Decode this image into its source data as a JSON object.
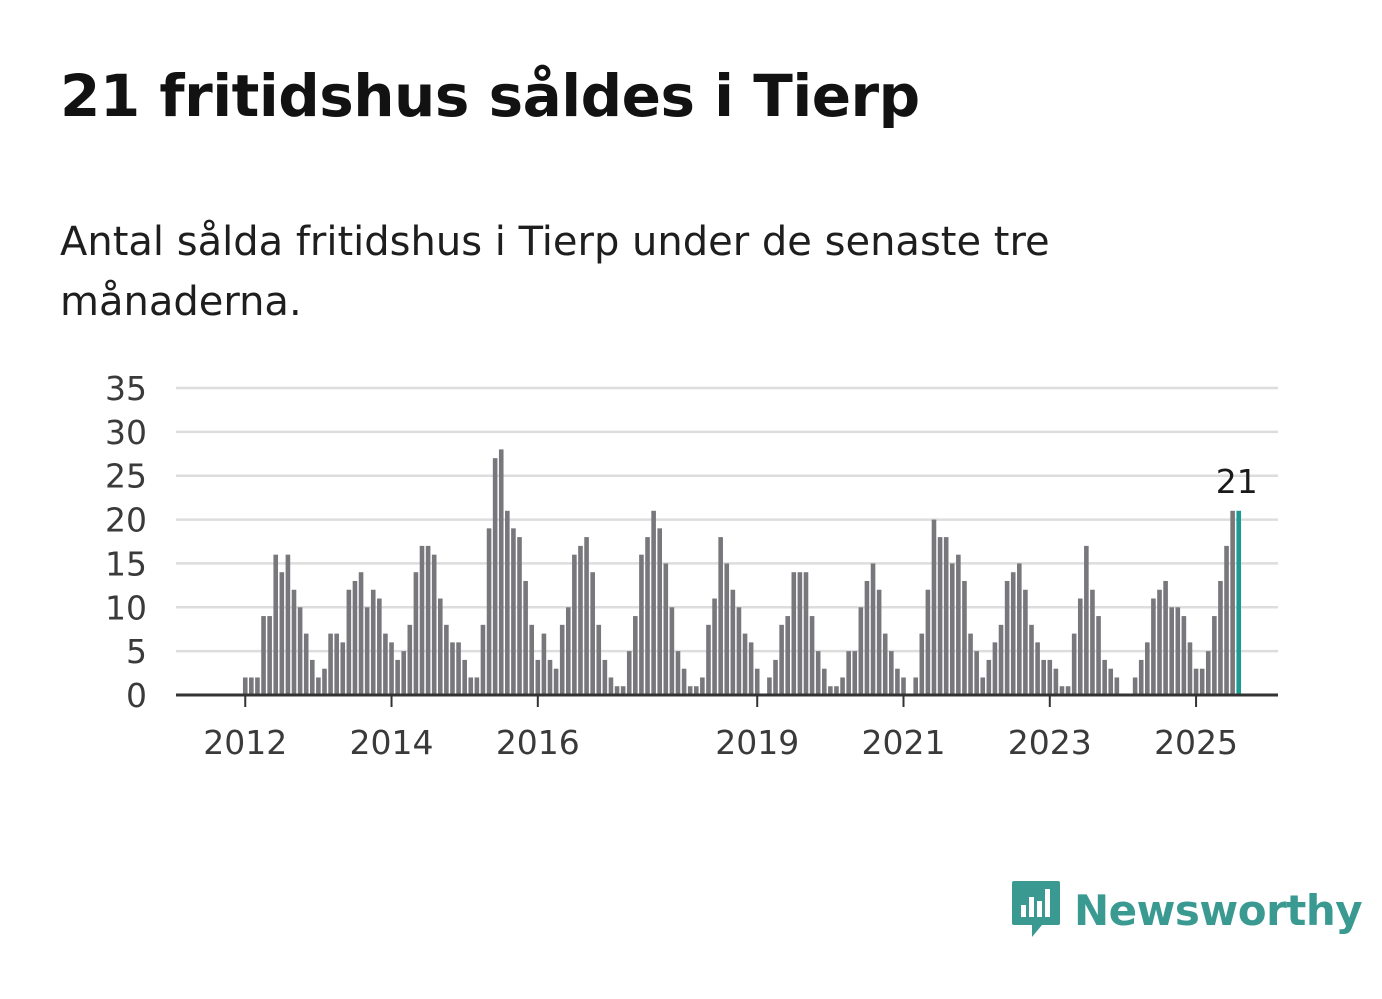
{
  "title": "21 fritidshus såldes i Tierp",
  "subtitle": "Antal sålda fritidshus i Tierp under de senaste tre månaderna.",
  "brand": {
    "name": "Newsworthy",
    "color": "#3a9a92",
    "icon": "newsworthy-logo-icon"
  },
  "colors": {
    "bar": "#78777c",
    "highlight": "#1a9a92",
    "grid": "#dddddd",
    "axis": "#333333"
  },
  "chart_data": {
    "type": "bar",
    "title": "",
    "xlabel": "",
    "ylabel": "",
    "ylim": [
      0,
      35
    ],
    "yticks": [
      0,
      5,
      10,
      15,
      20,
      25,
      30,
      35
    ],
    "xticks": [
      "2012",
      "2014",
      "2016",
      "2019",
      "2021",
      "2023",
      "2025"
    ],
    "grid": true,
    "start_month": "2011-03",
    "highlight_value_label": "21",
    "values": [
      0,
      0,
      0,
      0,
      0,
      0,
      0,
      0,
      0,
      0,
      2,
      2,
      2,
      9,
      9,
      16,
      14,
      16,
      12,
      10,
      7,
      4,
      2,
      3,
      7,
      7,
      6,
      12,
      13,
      14,
      10,
      12,
      11,
      7,
      6,
      4,
      5,
      8,
      14,
      17,
      17,
      16,
      11,
      8,
      6,
      6,
      4,
      2,
      2,
      8,
      19,
      27,
      28,
      21,
      19,
      18,
      13,
      8,
      4,
      7,
      4,
      3,
      8,
      10,
      16,
      17,
      18,
      14,
      8,
      4,
      2,
      1,
      1,
      5,
      9,
      16,
      18,
      21,
      19,
      15,
      10,
      5,
      3,
      1,
      1,
      2,
      8,
      11,
      18,
      15,
      12,
      10,
      7,
      6,
      3,
      0,
      2,
      4,
      8,
      9,
      14,
      14,
      14,
      9,
      5,
      3,
      1,
      1,
      2,
      5,
      5,
      10,
      13,
      15,
      12,
      7,
      5,
      3,
      2,
      0,
      2,
      7,
      12,
      20,
      18,
      18,
      15,
      16,
      13,
      7,
      5,
      2,
      4,
      6,
      8,
      13,
      14,
      15,
      12,
      8,
      6,
      4,
      4,
      3,
      1,
      1,
      7,
      11,
      17,
      12,
      9,
      4,
      3,
      2,
      0,
      0,
      2,
      4,
      6,
      11,
      12,
      13,
      10,
      10,
      9,
      6,
      3,
      3,
      5,
      9,
      13,
      17,
      21,
      21
    ]
  }
}
